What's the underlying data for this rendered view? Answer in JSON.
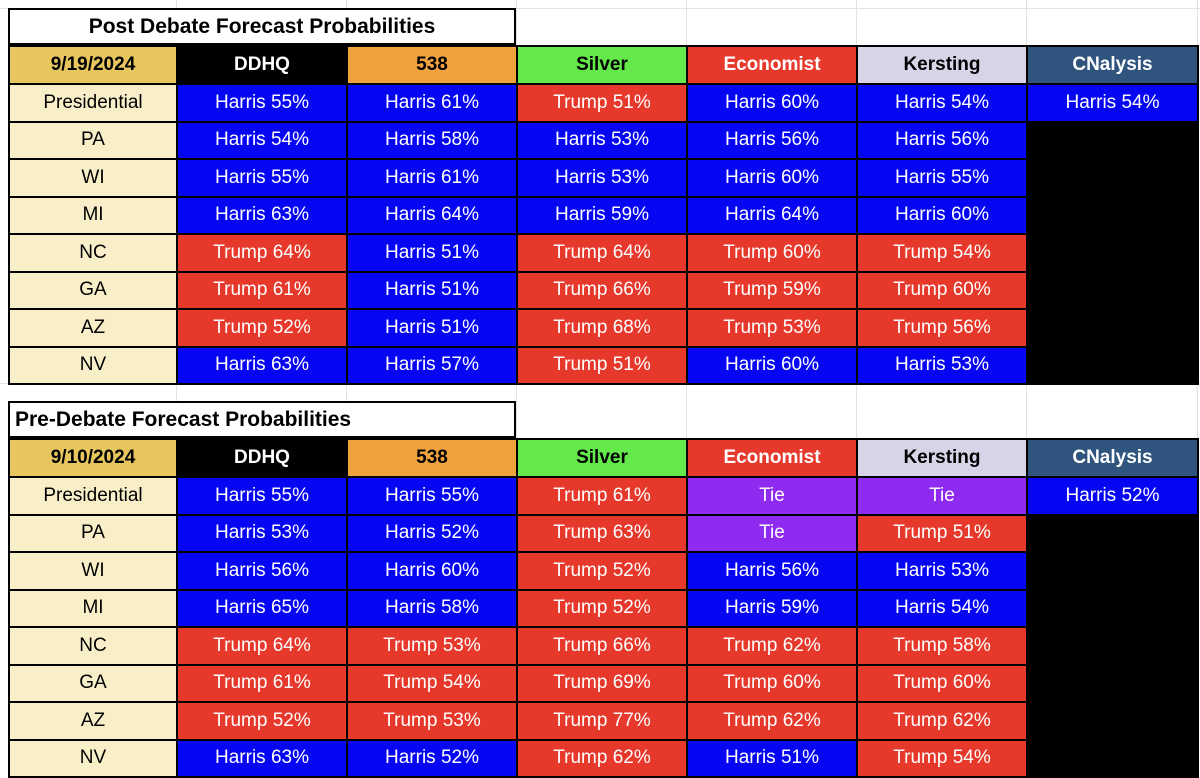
{
  "sheet": {
    "colors": {
      "harris": "#0606F2",
      "trump": "#E6392C",
      "tie": "#8F2BF0",
      "empty": "#000000",
      "cell_text": "#FFFFFF",
      "date_bg": "#E7C65E",
      "label_bg": "#F8EFC9",
      "gridline": "#E2E2E2",
      "border": "#000000",
      "title_bg": "#FFFFFF"
    }
  },
  "tables": [
    {
      "title": "Post Debate Forecast Probabilities",
      "title_align": "center",
      "date": "9/19/2024",
      "columns": [
        {
          "label": "DDHQ",
          "bg": "#000000",
          "fg": "#FFFFFF"
        },
        {
          "label": "538",
          "bg": "#F0A23E",
          "fg": "#000000"
        },
        {
          "label": "Silver",
          "bg": "#63E94A",
          "fg": "#000000"
        },
        {
          "label": "Economist",
          "bg": "#E6392C",
          "fg": "#FFFFFF"
        },
        {
          "label": "Kersting",
          "bg": "#D8D3E7",
          "fg": "#000000"
        },
        {
          "label": "CNalysis",
          "bg": "#2F547D",
          "fg": "#FFFFFF"
        }
      ],
      "rows": [
        {
          "label": "Presidential",
          "cells": [
            {
              "text": "Harris 55%",
              "type": "harris"
            },
            {
              "text": "Harris 61%",
              "type": "harris"
            },
            {
              "text": "Trump 51%",
              "type": "trump"
            },
            {
              "text": "Harris 60%",
              "type": "harris"
            },
            {
              "text": "Harris 54%",
              "type": "harris"
            },
            {
              "text": "Harris 54%",
              "type": "harris"
            }
          ]
        },
        {
          "label": "PA",
          "cells": [
            {
              "text": "Harris 54%",
              "type": "harris"
            },
            {
              "text": "Harris 58%",
              "type": "harris"
            },
            {
              "text": "Harris 53%",
              "type": "harris"
            },
            {
              "text": "Harris 56%",
              "type": "harris"
            },
            {
              "text": "Harris 56%",
              "type": "harris"
            },
            {
              "text": "",
              "type": "empty"
            }
          ]
        },
        {
          "label": "WI",
          "cells": [
            {
              "text": "Harris 55%",
              "type": "harris"
            },
            {
              "text": "Harris 61%",
              "type": "harris"
            },
            {
              "text": "Harris 53%",
              "type": "harris"
            },
            {
              "text": "Harris 60%",
              "type": "harris"
            },
            {
              "text": "Harris 55%",
              "type": "harris"
            },
            {
              "text": "",
              "type": "empty"
            }
          ]
        },
        {
          "label": "MI",
          "cells": [
            {
              "text": "Harris 63%",
              "type": "harris"
            },
            {
              "text": "Harris 64%",
              "type": "harris"
            },
            {
              "text": "Harris 59%",
              "type": "harris"
            },
            {
              "text": "Harris 64%",
              "type": "harris"
            },
            {
              "text": "Harris 60%",
              "type": "harris"
            },
            {
              "text": "",
              "type": "empty"
            }
          ]
        },
        {
          "label": "NC",
          "cells": [
            {
              "text": "Trump 64%",
              "type": "trump"
            },
            {
              "text": "Harris 51%",
              "type": "harris"
            },
            {
              "text": "Trump 64%",
              "type": "trump"
            },
            {
              "text": "Trump 60%",
              "type": "trump"
            },
            {
              "text": "Trump 54%",
              "type": "trump"
            },
            {
              "text": "",
              "type": "empty"
            }
          ]
        },
        {
          "label": "GA",
          "cells": [
            {
              "text": "Trump 61%",
              "type": "trump"
            },
            {
              "text": "Harris 51%",
              "type": "harris"
            },
            {
              "text": "Trump 66%",
              "type": "trump"
            },
            {
              "text": "Trump 59%",
              "type": "trump"
            },
            {
              "text": "Trump 60%",
              "type": "trump"
            },
            {
              "text": "",
              "type": "empty"
            }
          ]
        },
        {
          "label": "AZ",
          "cells": [
            {
              "text": "Trump 52%",
              "type": "trump"
            },
            {
              "text": "Harris 51%",
              "type": "harris"
            },
            {
              "text": "Trump 68%",
              "type": "trump"
            },
            {
              "text": "Trump 53%",
              "type": "trump"
            },
            {
              "text": "Trump 56%",
              "type": "trump"
            },
            {
              "text": "",
              "type": "empty"
            }
          ]
        },
        {
          "label": "NV",
          "cells": [
            {
              "text": "Harris 63%",
              "type": "harris"
            },
            {
              "text": "Harris 57%",
              "type": "harris"
            },
            {
              "text": "Trump 51%",
              "type": "trump"
            },
            {
              "text": "Harris 60%",
              "type": "harris"
            },
            {
              "text": "Harris 53%",
              "type": "harris"
            },
            {
              "text": "",
              "type": "empty"
            }
          ]
        }
      ]
    },
    {
      "title": "Pre-Debate Forecast Probabilities",
      "title_align": "left",
      "date": "9/10/2024",
      "columns": [
        {
          "label": "DDHQ",
          "bg": "#000000",
          "fg": "#FFFFFF"
        },
        {
          "label": "538",
          "bg": "#F0A23E",
          "fg": "#000000"
        },
        {
          "label": "Silver",
          "bg": "#63E94A",
          "fg": "#000000"
        },
        {
          "label": "Economist",
          "bg": "#E6392C",
          "fg": "#FFFFFF"
        },
        {
          "label": "Kersting",
          "bg": "#D8D3E7",
          "fg": "#000000"
        },
        {
          "label": "CNalysis",
          "bg": "#2F547D",
          "fg": "#FFFFFF"
        }
      ],
      "rows": [
        {
          "label": "Presidential",
          "cells": [
            {
              "text": "Harris 55%",
              "type": "harris"
            },
            {
              "text": "Harris 55%",
              "type": "harris"
            },
            {
              "text": "Trump 61%",
              "type": "trump"
            },
            {
              "text": "Tie",
              "type": "tie"
            },
            {
              "text": "Tie",
              "type": "tie"
            },
            {
              "text": "Harris 52%",
              "type": "harris"
            }
          ]
        },
        {
          "label": "PA",
          "cells": [
            {
              "text": "Harris 53%",
              "type": "harris"
            },
            {
              "text": "Harris 52%",
              "type": "harris"
            },
            {
              "text": "Trump 63%",
              "type": "trump"
            },
            {
              "text": "Tie",
              "type": "tie"
            },
            {
              "text": "Trump 51%",
              "type": "trump"
            },
            {
              "text": "",
              "type": "empty"
            }
          ]
        },
        {
          "label": "WI",
          "cells": [
            {
              "text": "Harris 56%",
              "type": "harris"
            },
            {
              "text": "Harris 60%",
              "type": "harris"
            },
            {
              "text": "Trump 52%",
              "type": "trump"
            },
            {
              "text": "Harris 56%",
              "type": "harris"
            },
            {
              "text": "Harris 53%",
              "type": "harris"
            },
            {
              "text": "",
              "type": "empty"
            }
          ]
        },
        {
          "label": "MI",
          "cells": [
            {
              "text": "Harris 65%",
              "type": "harris"
            },
            {
              "text": "Harris 58%",
              "type": "harris"
            },
            {
              "text": "Trump 52%",
              "type": "trump"
            },
            {
              "text": "Harris 59%",
              "type": "harris"
            },
            {
              "text": "Harris 54%",
              "type": "harris"
            },
            {
              "text": "",
              "type": "empty"
            }
          ]
        },
        {
          "label": "NC",
          "cells": [
            {
              "text": "Trump 64%",
              "type": "trump"
            },
            {
              "text": "Trump 53%",
              "type": "trump"
            },
            {
              "text": "Trump 66%",
              "type": "trump"
            },
            {
              "text": "Trump 62%",
              "type": "trump"
            },
            {
              "text": "Trump 58%",
              "type": "trump"
            },
            {
              "text": "",
              "type": "empty"
            }
          ]
        },
        {
          "label": "GA",
          "cells": [
            {
              "text": "Trump 61%",
              "type": "trump"
            },
            {
              "text": "Trump 54%",
              "type": "trump"
            },
            {
              "text": "Trump 69%",
              "type": "trump"
            },
            {
              "text": "Trump 60%",
              "type": "trump"
            },
            {
              "text": "Trump 60%",
              "type": "trump"
            },
            {
              "text": "",
              "type": "empty"
            }
          ]
        },
        {
          "label": "AZ",
          "cells": [
            {
              "text": "Trump 52%",
              "type": "trump"
            },
            {
              "text": "Trump 53%",
              "type": "trump"
            },
            {
              "text": "Trump 77%",
              "type": "trump"
            },
            {
              "text": "Trump 62%",
              "type": "trump"
            },
            {
              "text": "Trump 62%",
              "type": "trump"
            },
            {
              "text": "",
              "type": "empty"
            }
          ]
        },
        {
          "label": "NV",
          "cells": [
            {
              "text": "Harris 63%",
              "type": "harris"
            },
            {
              "text": "Harris 52%",
              "type": "harris"
            },
            {
              "text": "Trump 62%",
              "type": "trump"
            },
            {
              "text": "Harris 51%",
              "type": "harris"
            },
            {
              "text": "Trump 54%",
              "type": "trump"
            },
            {
              "text": "",
              "type": "empty"
            }
          ]
        }
      ]
    }
  ]
}
